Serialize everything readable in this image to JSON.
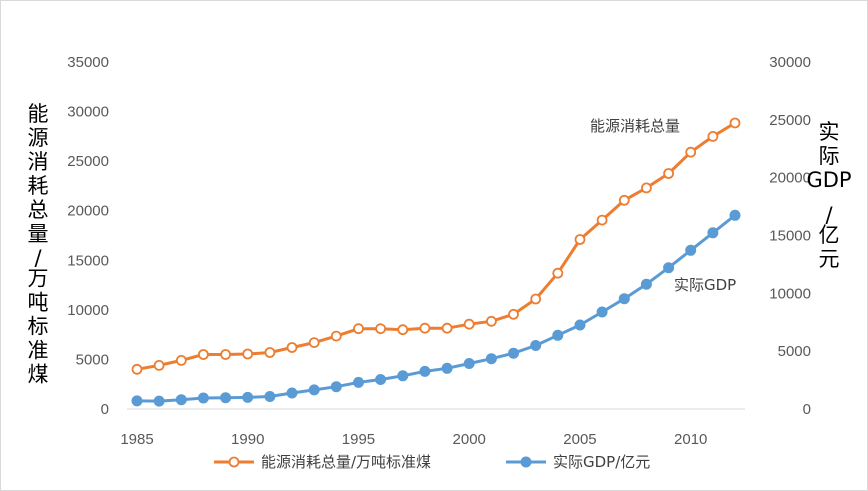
{
  "chart_data": {
    "type": "line",
    "title": "",
    "x": [
      1985,
      1986,
      1987,
      1988,
      1989,
      1990,
      1991,
      1992,
      1993,
      1994,
      1995,
      1996,
      1997,
      1998,
      1999,
      2000,
      2001,
      2002,
      2003,
      2004,
      2005,
      2006,
      2007,
      2008,
      2009,
      2010,
      2011,
      2012
    ],
    "xlim": [
      1985,
      2012
    ],
    "xticks": [
      1985,
      1990,
      1995,
      2000,
      2005,
      2010
    ],
    "y_left": {
      "label": "能源消耗总量/万吨标准煤",
      "lim": [
        0,
        35000
      ],
      "ticks": [
        0,
        5000,
        10000,
        15000,
        20000,
        25000,
        30000,
        35000
      ]
    },
    "y_right": {
      "label": "实际GDP/亿元",
      "lim": [
        0,
        30000
      ],
      "ticks": [
        0,
        5000,
        10000,
        15000,
        20000,
        25000,
        30000
      ]
    },
    "grid": false,
    "legend_position": "bottom",
    "series": [
      {
        "name": "能源消耗总量/万吨标准煤",
        "axis": "left",
        "color": "#ed7d31",
        "marker": "hollow-circle",
        "end_label": "能源消耗总量",
        "values": [
          4000,
          4400,
          4900,
          5500,
          5500,
          5550,
          5700,
          6200,
          6700,
          7350,
          8100,
          8100,
          8000,
          8150,
          8150,
          8550,
          8850,
          9550,
          11100,
          13700,
          17100,
          19050,
          21050,
          22300,
          23750,
          25900,
          27500,
          28850
        ]
      },
      {
        "name": "实际GDP/亿元",
        "axis": "right",
        "color": "#5b9bd5",
        "marker": "filled-circle",
        "end_label": "实际GDP",
        "values": [
          700,
          680,
          800,
          950,
          980,
          1000,
          1080,
          1380,
          1650,
          1930,
          2300,
          2550,
          2870,
          3250,
          3520,
          3930,
          4350,
          4820,
          5490,
          6370,
          7260,
          8390,
          9540,
          10790,
          12220,
          13720,
          15230,
          16750
        ]
      }
    ]
  }
}
